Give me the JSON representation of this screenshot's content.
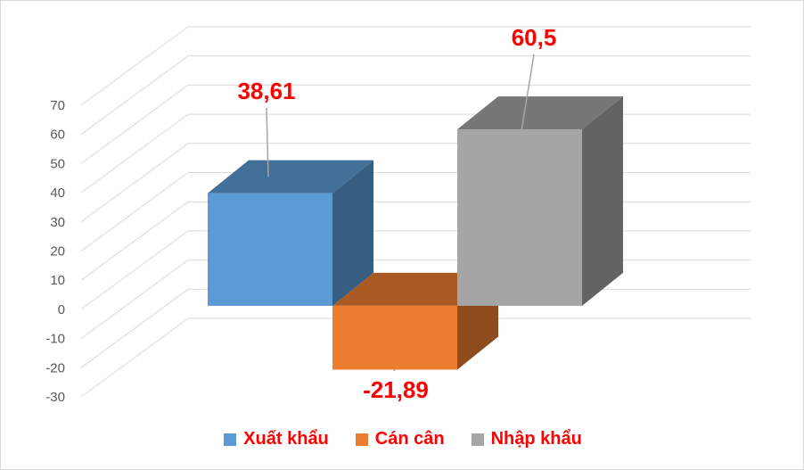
{
  "chart_data": {
    "type": "bar",
    "categories": [
      "Xuất khẩu",
      "Cán cân",
      "Nhập khẩu"
    ],
    "values": [
      38.61,
      -21.89,
      60.5
    ],
    "data_labels": [
      "38,61",
      "-21,89",
      "60,5"
    ],
    "colors": [
      "#5b9bd5",
      "#ed7d31",
      "#a5a5a5"
    ],
    "ylim": [
      -30,
      70
    ],
    "yticks": [
      70,
      60,
      50,
      40,
      30,
      20,
      10,
      0,
      -10,
      -20,
      -30
    ],
    "grid": true,
    "style": "3d",
    "legend_position": "bottom",
    "title": "",
    "xlabel": "",
    "ylabel": ""
  },
  "legend": {
    "items": [
      {
        "label": "Xuất khẩu",
        "color": "#5b9bd5"
      },
      {
        "label": "Cán cân",
        "color": "#ed7d31"
      },
      {
        "label": "Nhập khẩu",
        "color": "#a5a5a5"
      }
    ]
  }
}
